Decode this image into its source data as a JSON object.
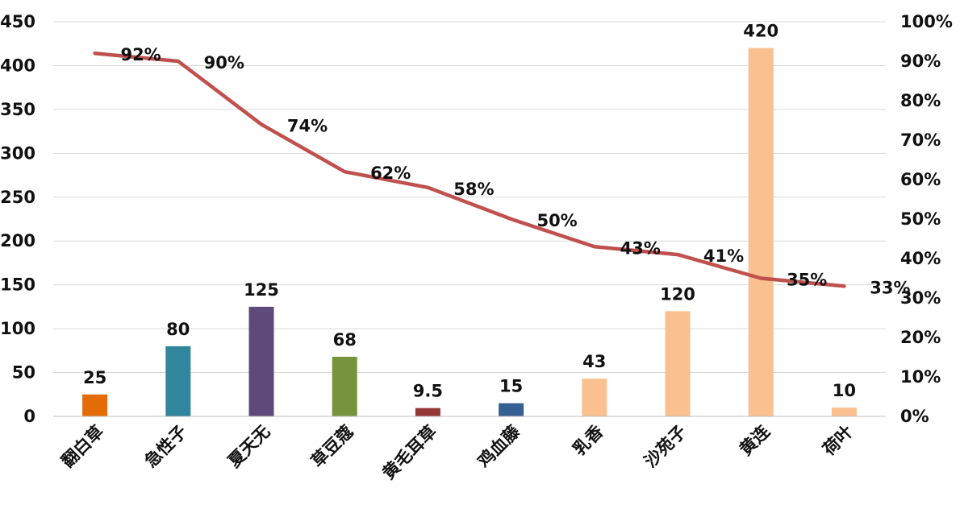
{
  "chart_data": {
    "type": "bar+line",
    "categories": [
      "翻白草",
      "急性子",
      "夏天无",
      "草豆蔻",
      "黄毛耳草",
      "鸡血藤",
      "乳香",
      "沙苑子",
      "黄连",
      "荷叶"
    ],
    "bar_values": [
      25,
      80,
      125,
      68,
      9.5,
      15,
      43,
      120,
      420,
      10
    ],
    "bar_labels": [
      "25",
      "80",
      "125",
      "68",
      "9.5",
      "15",
      "43",
      "120",
      "420",
      "10"
    ],
    "bar_colors": [
      "#e36c09",
      "#31859c",
      "#5f497a",
      "#77933c",
      "#953735",
      "#376092",
      "#fac090",
      "#fac090",
      "#fac090",
      "#fac090"
    ],
    "line_values": [
      92,
      90,
      74,
      62,
      58,
      50,
      43,
      41,
      35,
      33
    ],
    "line_labels": [
      "92%",
      "90%",
      "74%",
      "62%",
      "58%",
      "50%",
      "43%",
      "41%",
      "35%",
      "33%"
    ],
    "line_color": "#c0504d",
    "y_left": {
      "min": 0,
      "max": 450,
      "ticks": [
        "0",
        "50",
        "100",
        "150",
        "200",
        "250",
        "300",
        "350",
        "400",
        "450"
      ]
    },
    "y_right": {
      "min": 0,
      "max": 100,
      "ticks": [
        "0%",
        "10%",
        "20%",
        "30%",
        "40%",
        "50%",
        "60%",
        "70%",
        "80%",
        "90%",
        "100%"
      ]
    },
    "grid": true,
    "grid_color": "#d9d9d9"
  }
}
